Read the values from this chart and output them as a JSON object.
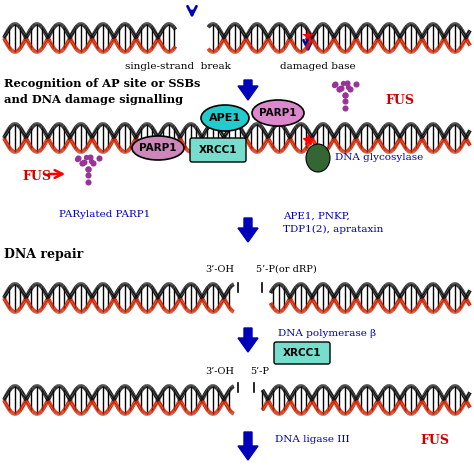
{
  "bg_color": "#ffffff",
  "dna_color_red": "#cc2200",
  "dna_color_black": "#111111",
  "arrow_color": "#0000bb",
  "text_color_blue": "#0000bb",
  "text_color_black": "#000000",
  "text_color_red": "#cc0000",
  "label_ssb": "single-strand  break",
  "label_db": "damaged base",
  "label_recognition": "Recognition of AP site or SSBs\nand DNA damage signalling",
  "label_dna_repair": "DNA repair",
  "label_ape1": "APE1",
  "label_parp1_top": "PARP1",
  "label_parp1_bottom": "PARP1",
  "label_xrcc1_top": "XRCC1",
  "label_xrcc1_mid": "XRCC1",
  "label_fus_top": "FUS",
  "label_fus_bottom": "FUS",
  "label_dna_glycosylase": "DNA glycosylase",
  "label_parylated": "PARylated PARP1",
  "label_ape1_pnkp": "APE1, PNKP,\nTDP1(2), aprataxin",
  "label_3oh_1": "3’-OH",
  "label_5p_1": "5’-P(or dRP)",
  "label_dna_polb": "DNA polymerase β",
  "label_3oh_2": "3’-OH",
  "label_5p_2": "5’-P",
  "label_dna_ligase": "DNA ligase III",
  "label_fus_bottom2": "FUS",
  "ape1_color": "#22cccc",
  "parp1_top_color": "#dd88cc",
  "parp1_bottom_color": "#cc88bb",
  "xrcc1_color": "#77ddcc",
  "dna_glycosylase_color": "#336633",
  "fus_color": "#993399"
}
